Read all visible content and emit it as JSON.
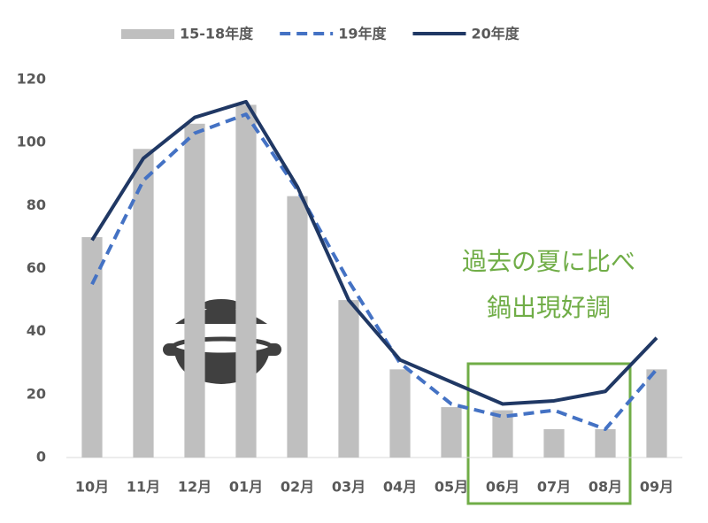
{
  "chart_data": {
    "type": "bar",
    "categories": [
      "10月",
      "11月",
      "12月",
      "01月",
      "02月",
      "03月",
      "04月",
      "05月",
      "06月",
      "07月",
      "08月",
      "09月"
    ],
    "series": [
      {
        "name": "15-18年度",
        "type": "bar",
        "color": "#bfbfbf",
        "values": [
          70,
          98,
          106,
          112,
          83,
          50,
          28,
          16,
          15,
          9,
          9,
          28
        ]
      },
      {
        "name": "19年度",
        "type": "line",
        "dash": true,
        "color": "#4472c4",
        "values": [
          55,
          88,
          103,
          109,
          85,
          56,
          30,
          17,
          13,
          15,
          9,
          28
        ]
      },
      {
        "name": "20年度",
        "type": "line",
        "dash": false,
        "color": "#203864",
        "values": [
          69,
          95,
          108,
          113,
          86,
          50,
          31,
          24,
          17,
          18,
          21,
          38
        ]
      }
    ],
    "ylim": [
      0,
      120
    ],
    "yticks": [
      0,
      20,
      40,
      60,
      80,
      100,
      120
    ],
    "grid": false,
    "legend": "top",
    "annotations": [
      "過去の夏に比べ",
      "鍋出現好調"
    ],
    "annotation_color": "#70ad47"
  }
}
